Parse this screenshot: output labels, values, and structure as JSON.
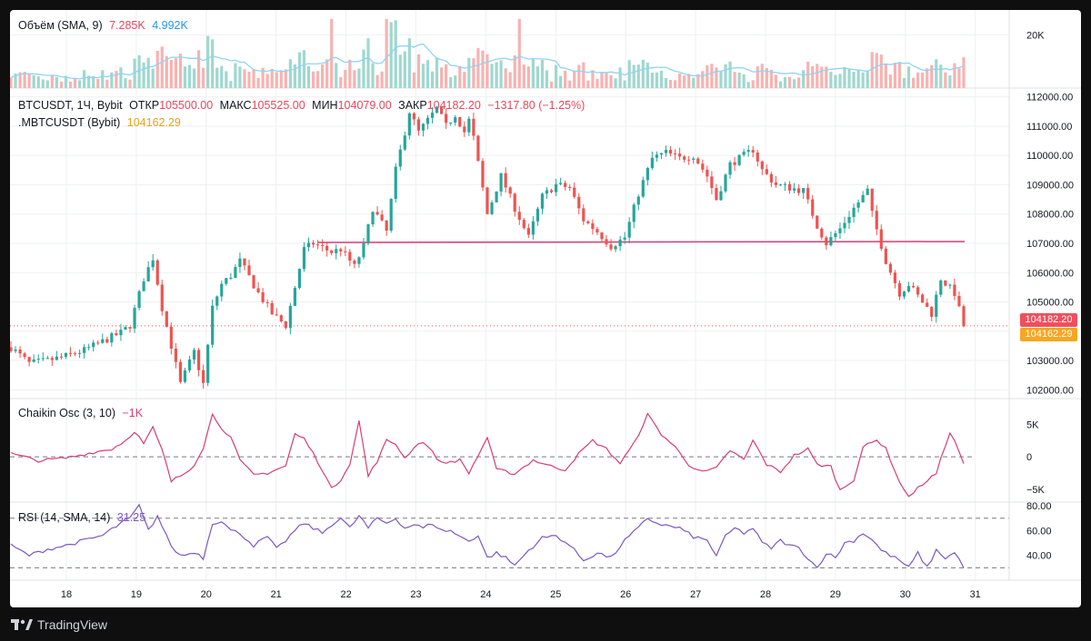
{
  "volume_legend": {
    "name": "Объём (SMA, 9)",
    "v1": "7.285K",
    "v2": "4.992K"
  },
  "main_legend": {
    "symbol": "BTCUSDT, 1Ч, Bybit",
    "open_label": "ОТКР",
    "open": "105500.00",
    "high_label": "МАКС",
    "high": "105525.00",
    "low_label": "МИН",
    "low": "104079.00",
    "close_label": "ЗАКР",
    "close": "104182.20",
    "change": "−1317.80 (−1.25%)",
    "index_name": ".MBTCUSDT (Bybit)",
    "index_value": "104162.29"
  },
  "chaikin_legend": {
    "name": "Chaikin Osc (3, 10)",
    "value": "−1K"
  },
  "rsi_legend": {
    "name": "RSI (14, SMA, 14)",
    "value": "31.25"
  },
  "price_tags": {
    "last": "104182.20",
    "index": "104162.29"
  },
  "footer": {
    "brand": "TradingView"
  },
  "colors": {
    "up": "#26a69a",
    "down": "#ef5350",
    "chaikin": "#d63d74",
    "rsi": "#7e57c2",
    "level": "#d63d74",
    "vol_sma": "#8fd3f4"
  },
  "chart_data": {
    "type": "candlestick",
    "symbol": "BTCUSDT",
    "timeframe": "1Ч",
    "x_tick_labels": [
      "18",
      "19",
      "20",
      "21",
      "22",
      "23",
      "24",
      "25",
      "26",
      "27",
      "28",
      "29",
      "30",
      "31"
    ],
    "price_axis": {
      "ticks": [
        "112000.00",
        "111000.00",
        "110000.00",
        "109000.00",
        "108000.00",
        "107000.00",
        "106000.00",
        "105000.00",
        "104000.00",
        "103000.00",
        "102000.00"
      ],
      "ylim": [
        101700,
        112300
      ]
    },
    "volume_axis": {
      "ticks": [
        "20K"
      ],
      "ylim": [
        0,
        28000
      ]
    },
    "chaikin_axis": {
      "ticks": [
        "5K",
        "0",
        "−5K"
      ],
      "ylim": [
        -7000,
        9000
      ]
    },
    "rsi_axis": {
      "ticks": [
        "80.00",
        "60.00",
        "40.00"
      ],
      "ylim": [
        20,
        83
      ],
      "bands": [
        70,
        30
      ]
    },
    "horizontal_level": 107000,
    "last_price": 104182.2,
    "index_price": 104162.29,
    "price_path": [
      [
        0,
        103450
      ],
      [
        4,
        102900
      ],
      [
        8,
        103000
      ],
      [
        12,
        103150
      ],
      [
        16,
        103350
      ],
      [
        20,
        103650
      ],
      [
        24,
        103950
      ],
      [
        26,
        104200
      ],
      [
        29,
        105800
      ],
      [
        31,
        106500
      ],
      [
        33,
        104800
      ],
      [
        35,
        103500
      ],
      [
        37,
        102200
      ],
      [
        40,
        103300
      ],
      [
        42,
        102200
      ],
      [
        44,
        104800
      ],
      [
        46,
        105600
      ],
      [
        48,
        105900
      ],
      [
        50,
        106400
      ],
      [
        54,
        105300
      ],
      [
        57,
        104600
      ],
      [
        60,
        104200
      ],
      [
        62,
        105500
      ],
      [
        64,
        106800
      ],
      [
        66,
        107000
      ],
      [
        70,
        106700
      ],
      [
        72,
        106800
      ],
      [
        75,
        106200
      ],
      [
        77,
        106900
      ],
      [
        79,
        108200
      ],
      [
        82,
        107400
      ],
      [
        84,
        109500
      ],
      [
        86,
        110800
      ],
      [
        87,
        111500
      ],
      [
        89,
        110800
      ],
      [
        91,
        111200
      ],
      [
        93,
        111600
      ],
      [
        95,
        111000
      ],
      [
        97,
        111400
      ],
      [
        99,
        110800
      ],
      [
        100,
        111200
      ],
      [
        101,
        110600
      ],
      [
        104,
        108000
      ],
      [
        107,
        109300
      ],
      [
        110,
        108200
      ],
      [
        113,
        107200
      ],
      [
        116,
        108600
      ],
      [
        119,
        109000
      ],
      [
        122,
        108900
      ],
      [
        125,
        107800
      ],
      [
        128,
        107400
      ],
      [
        131,
        106900
      ],
      [
        134,
        107200
      ],
      [
        137,
        108700
      ],
      [
        140,
        109900
      ],
      [
        143,
        110100
      ],
      [
        146,
        109900
      ],
      [
        149,
        110000
      ],
      [
        152,
        109300
      ],
      [
        154,
        108500
      ],
      [
        157,
        109700
      ],
      [
        159,
        109900
      ],
      [
        162,
        110200
      ],
      [
        164,
        109500
      ],
      [
        167,
        109000
      ],
      [
        170,
        108900
      ],
      [
        173,
        108800
      ],
      [
        176,
        107600
      ],
      [
        178,
        107000
      ],
      [
        181,
        107500
      ],
      [
        184,
        108200
      ],
      [
        187,
        108800
      ],
      [
        188,
        108000
      ],
      [
        191,
        106400
      ],
      [
        194,
        105300
      ],
      [
        196,
        105600
      ],
      [
        198,
        105200
      ],
      [
        201,
        104600
      ],
      [
        203,
        105800
      ],
      [
        206,
        105300
      ],
      [
        208,
        104182
      ]
    ],
    "volume_profile": "per-bar estimates, peak around day 21–22 near 26K",
    "series": [
      {
        "name": "Chaikin Osc (3, 10)",
        "path": [
          [
            0,
            500
          ],
          [
            6,
            -600
          ],
          [
            12,
            -200
          ],
          [
            18,
            700
          ],
          [
            22,
            1200
          ],
          [
            25,
            2500
          ],
          [
            27,
            4000
          ],
          [
            29,
            2000
          ],
          [
            31,
            4500
          ],
          [
            33,
            1000
          ],
          [
            35,
            -3800
          ],
          [
            38,
            -2500
          ],
          [
            40,
            -1200
          ],
          [
            42,
            1500
          ],
          [
            44,
            6500
          ],
          [
            46,
            4500
          ],
          [
            48,
            3000
          ],
          [
            50,
            -600
          ],
          [
            53,
            -2800
          ],
          [
            56,
            -2500
          ],
          [
            60,
            -1400
          ],
          [
            62,
            3500
          ],
          [
            64,
            2800
          ],
          [
            66,
            500
          ],
          [
            68,
            -2000
          ],
          [
            70,
            -5000
          ],
          [
            72,
            -3500
          ],
          [
            74,
            -1000
          ],
          [
            76,
            5500
          ],
          [
            78,
            -3000
          ],
          [
            80,
            -600
          ],
          [
            82,
            2500
          ],
          [
            84,
            2000
          ],
          [
            86,
            -200
          ],
          [
            88,
            1500
          ],
          [
            90,
            2400
          ],
          [
            94,
            -1000
          ],
          [
            98,
            -500
          ],
          [
            100,
            -2500
          ],
          [
            102,
            200
          ],
          [
            104,
            3000
          ],
          [
            106,
            -2000
          ],
          [
            110,
            -2600
          ],
          [
            114,
            -500
          ],
          [
            118,
            -1500
          ],
          [
            121,
            -2000
          ],
          [
            124,
            500
          ],
          [
            127,
            2500
          ],
          [
            130,
            1200
          ],
          [
            133,
            -1000
          ],
          [
            136,
            2000
          ],
          [
            139,
            6500
          ],
          [
            142,
            3500
          ],
          [
            145,
            1500
          ],
          [
            148,
            -1200
          ],
          [
            151,
            -2400
          ],
          [
            154,
            -1800
          ],
          [
            157,
            1000
          ],
          [
            160,
            -500
          ],
          [
            162,
            2500
          ],
          [
            165,
            -1200
          ],
          [
            168,
            -2300
          ],
          [
            171,
            200
          ],
          [
            174,
            1200
          ],
          [
            176,
            -1200
          ],
          [
            179,
            -1500
          ],
          [
            181,
            -5200
          ],
          [
            184,
            -3500
          ],
          [
            186,
            1500
          ],
          [
            189,
            2500
          ],
          [
            191,
            1500
          ],
          [
            193,
            -2500
          ],
          [
            196,
            -6200
          ],
          [
            199,
            -4200
          ],
          [
            202,
            -2600
          ],
          [
            205,
            3900
          ],
          [
            207,
            800
          ],
          [
            208,
            -1000
          ]
        ]
      },
      {
        "name": "RSI (14, SMA, 14)",
        "path": [
          [
            0,
            48
          ],
          [
            4,
            40
          ],
          [
            8,
            45
          ],
          [
            12,
            48
          ],
          [
            16,
            52
          ],
          [
            20,
            56
          ],
          [
            24,
            66
          ],
          [
            26,
            70
          ],
          [
            28,
            80
          ],
          [
            30,
            60
          ],
          [
            32,
            72
          ],
          [
            34,
            55
          ],
          [
            36,
            42
          ],
          [
            38,
            40
          ],
          [
            40,
            43
          ],
          [
            42,
            38
          ],
          [
            44,
            66
          ],
          [
            46,
            68
          ],
          [
            48,
            60
          ],
          [
            50,
            58
          ],
          [
            53,
            48
          ],
          [
            56,
            55
          ],
          [
            58,
            45
          ],
          [
            60,
            52
          ],
          [
            62,
            60
          ],
          [
            64,
            66
          ],
          [
            66,
            62
          ],
          [
            68,
            58
          ],
          [
            70,
            65
          ],
          [
            72,
            70
          ],
          [
            74,
            62
          ],
          [
            76,
            72
          ],
          [
            78,
            62
          ],
          [
            80,
            70
          ],
          [
            82,
            66
          ],
          [
            84,
            70
          ],
          [
            86,
            62
          ],
          [
            88,
            65
          ],
          [
            90,
            62
          ],
          [
            92,
            66
          ],
          [
            94,
            60
          ],
          [
            96,
            60
          ],
          [
            98,
            55
          ],
          [
            100,
            52
          ],
          [
            102,
            56
          ],
          [
            104,
            38
          ],
          [
            106,
            42
          ],
          [
            108,
            38
          ],
          [
            110,
            32
          ],
          [
            113,
            44
          ],
          [
            116,
            54
          ],
          [
            119,
            56
          ],
          [
            122,
            48
          ],
          [
            125,
            36
          ],
          [
            128,
            42
          ],
          [
            131,
            38
          ],
          [
            134,
            52
          ],
          [
            137,
            62
          ],
          [
            139,
            70
          ],
          [
            141,
            66
          ],
          [
            143,
            64
          ],
          [
            146,
            62
          ],
          [
            149,
            55
          ],
          [
            152,
            52
          ],
          [
            154,
            40
          ],
          [
            156,
            55
          ],
          [
            158,
            62
          ],
          [
            160,
            58
          ],
          [
            162,
            62
          ],
          [
            164,
            50
          ],
          [
            166,
            46
          ],
          [
            168,
            52
          ],
          [
            170,
            48
          ],
          [
            172,
            46
          ],
          [
            174,
            38
          ],
          [
            176,
            30
          ],
          [
            178,
            42
          ],
          [
            180,
            38
          ],
          [
            182,
            50
          ],
          [
            184,
            52
          ],
          [
            186,
            58
          ],
          [
            188,
            53
          ],
          [
            190,
            44
          ],
          [
            192,
            40
          ],
          [
            194,
            36
          ],
          [
            196,
            30
          ],
          [
            198,
            42
          ],
          [
            200,
            30
          ],
          [
            202,
            44
          ],
          [
            204,
            38
          ],
          [
            206,
            42
          ],
          [
            208,
            31
          ]
        ]
      }
    ]
  }
}
